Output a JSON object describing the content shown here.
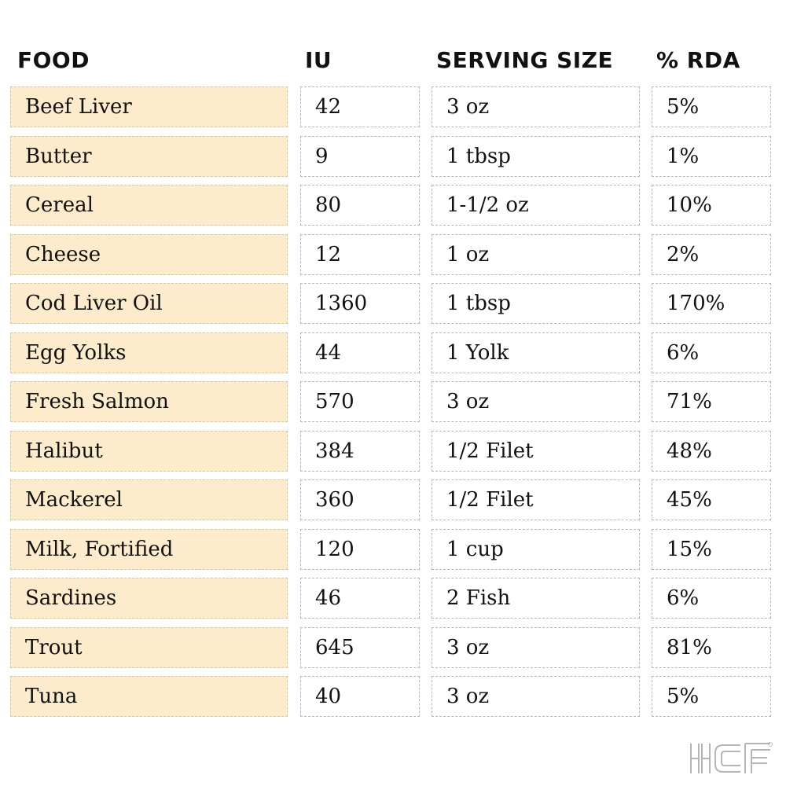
{
  "headers": {
    "food": "FOOD",
    "iu": "IU",
    "serving": "SERVING SIZE",
    "rda": "% RDA"
  },
  "rows": [
    {
      "food": "Beef Liver",
      "iu": "42",
      "serving": "3 oz",
      "rda": "5%"
    },
    {
      "food": "Butter",
      "iu": "9",
      "serving": "1 tbsp",
      "rda": "1%"
    },
    {
      "food": "Cereal",
      "iu": "80",
      "serving": "1-1/2 oz",
      "rda": "10%"
    },
    {
      "food": "Cheese",
      "iu": "12",
      "serving": "1 oz",
      "rda": "2%"
    },
    {
      "food": "Cod Liver Oil",
      "iu": "1360",
      "serving": "1 tbsp",
      "rda": "170%"
    },
    {
      "food": "Egg Yolks",
      "iu": "44",
      "serving": "1 Yolk",
      "rda": "6%"
    },
    {
      "food": "Fresh Salmon",
      "iu": "570",
      "serving": "3 oz",
      "rda": "71%"
    },
    {
      "food": "Halibut",
      "iu": "384",
      "serving": "1/2 Filet",
      "rda": "48%"
    },
    {
      "food": "Mackerel",
      "iu": "360",
      "serving": "1/2 Filet",
      "rda": "45%"
    },
    {
      "food": "Milk, Fortified",
      "iu": "120",
      "serving": "1 cup",
      "rda": "15%"
    },
    {
      "food": "Sardines",
      "iu": "46",
      "serving": "2 Fish",
      "rda": "6%"
    },
    {
      "food": "Trout",
      "iu": "645",
      "serving": "3 oz",
      "rda": "81%"
    },
    {
      "food": "Tuna",
      "iu": "40",
      "serving": "3 oz",
      "rda": "5%"
    }
  ],
  "logo": {
    "text": "HCF",
    "mark": "®"
  },
  "colors": {
    "food_cell_bg": "#fdeccb",
    "border": "#b8b8b8"
  }
}
